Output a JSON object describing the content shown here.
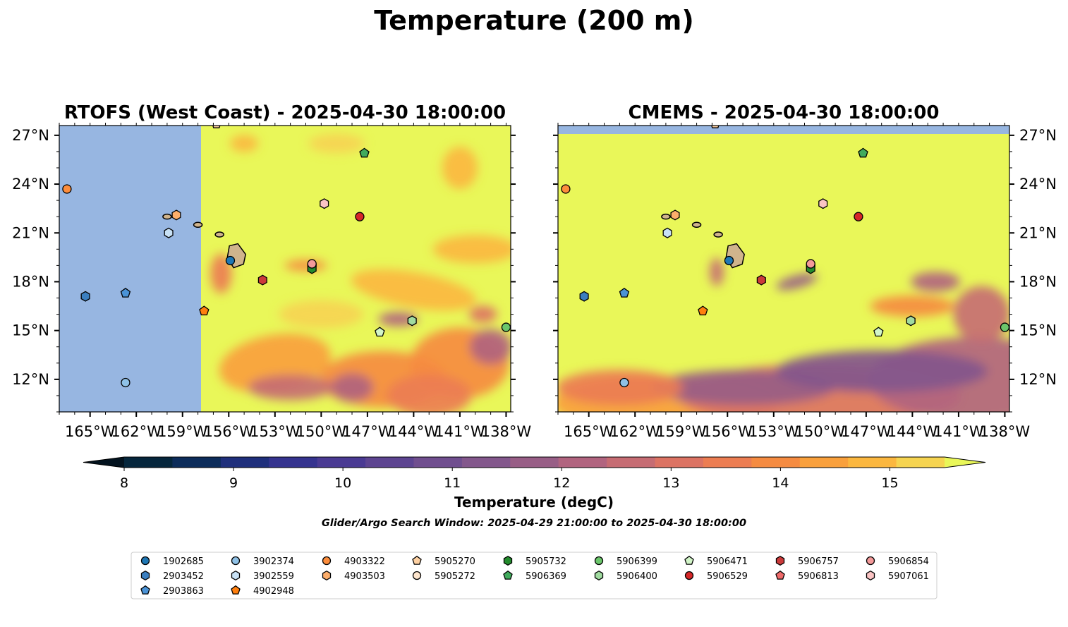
{
  "figure": {
    "title": "Temperature (200 m)",
    "search_window": "Glider/Argo Search Window: 2025-04-29 21:00:00 to 2025-04-30 18:00:00"
  },
  "chart_data": [
    {
      "type": "heatmap",
      "title": "RTOFS (West Coast) - 2025-04-30 18:00:00",
      "lon_range": [
        -167,
        -137.7
      ],
      "lat_range": [
        10,
        27.6
      ],
      "x_ticks": [
        -165,
        -162,
        -159,
        -156,
        -153,
        -150,
        -147,
        -144,
        -141,
        -138
      ],
      "x_tick_labels": [
        "165°W",
        "162°W",
        "159°W",
        "156°W",
        "153°W",
        "150°W",
        "147°W",
        "144°W",
        "141°W",
        "138°W"
      ],
      "y_ticks": [
        27,
        24,
        21,
        18,
        15,
        12
      ],
      "y_tick_labels": [
        "27°N",
        "24°N",
        "21°N",
        "18°N",
        "15°N",
        "12°N"
      ],
      "y_tick_side": "left",
      "no_data_west_of_lon": -157.8,
      "no_data_color": "#97b6e1"
    },
    {
      "type": "heatmap",
      "title": "CMEMS - 2025-04-30 18:00:00",
      "lon_range": [
        -167,
        -137.7
      ],
      "lat_range": [
        10,
        27.6
      ],
      "x_ticks": [
        -165,
        -162,
        -159,
        -156,
        -153,
        -150,
        -147,
        -144,
        -141,
        -138
      ],
      "x_tick_labels": [
        "165°W",
        "162°W",
        "159°W",
        "156°W",
        "153°W",
        "150°W",
        "147°W",
        "144°W",
        "141°W",
        "138°W"
      ],
      "y_ticks": [
        27,
        24,
        21,
        18,
        15,
        12
      ],
      "y_tick_labels": [
        "27°N",
        "24°N",
        "21°N",
        "18°N",
        "15°N",
        "12°N"
      ],
      "y_tick_side": "right",
      "no_data_north_of_lat": 27.1,
      "no_data_color": "#97b6e1"
    }
  ],
  "colorbar": {
    "label": "Temperature (degC)",
    "range": [
      8,
      15.5
    ],
    "ticks": [
      "8",
      "9",
      "10",
      "11",
      "12",
      "13",
      "14",
      "15"
    ],
    "under_color": "#03131f",
    "over_color": "#e9f759",
    "colors": [
      "#05263c",
      "#0c2c5a",
      "#1f2f7c",
      "#35338f",
      "#4a3a93",
      "#5d4491",
      "#704e8f",
      "#83578c",
      "#985e86",
      "#b1647f",
      "#c66c73",
      "#dc7363",
      "#ec7d52",
      "#f58b41",
      "#f9a03c",
      "#fbb73f",
      "#f6d451"
    ]
  },
  "islands": [
    {
      "name": "Niihau/Kauai",
      "lon": -160.0,
      "lat": 22.0
    },
    {
      "name": "Oahu",
      "lon": -158.0,
      "lat": 21.5
    },
    {
      "name": "Maui Nui",
      "lon": -156.6,
      "lat": 20.9
    },
    {
      "name": "Hawaii",
      "lon": -155.5,
      "lat": 19.6
    }
  ],
  "floats": [
    {
      "id": "1902685",
      "color": "#1f77b4",
      "marker": "circle",
      "lon": -155.9,
      "lat": 19.3
    },
    {
      "id": "2903452",
      "color": "#3b7fc0",
      "marker": "hexagon",
      "lon": -165.3,
      "lat": 17.1
    },
    {
      "id": "2903863",
      "color": "#4b93d6",
      "marker": "pentagon",
      "lon": -162.7,
      "lat": 17.3
    },
    {
      "id": "3902374",
      "color": "#8fc1e6",
      "marker": "circle",
      "lon": -162.7,
      "lat": 11.8
    },
    {
      "id": "3902559",
      "color": "#c8e1f5",
      "marker": "hexagon",
      "lon": -159.9,
      "lat": 21.0
    },
    {
      "id": "4902948",
      "color": "#ff7f0e",
      "marker": "pentagon",
      "lon": -157.6,
      "lat": 16.2
    },
    {
      "id": "4903322",
      "color": "#fd8d3c",
      "marker": "circle",
      "lon": -166.5,
      "lat": 23.7
    },
    {
      "id": "4903503",
      "color": "#fdae6b",
      "marker": "hexagon",
      "lon": -159.4,
      "lat": 22.1
    },
    {
      "id": "5905270",
      "color": "#fdd0a2",
      "marker": "pentagon",
      "lon": -156.8,
      "lat": 27.7
    },
    {
      "id": "5905272",
      "color": "#fee6ce",
      "marker": "circle",
      "lon": -150.6,
      "lat": 19.0
    },
    {
      "id": "5905732",
      "color": "#238b2d",
      "marker": "hexagon",
      "lon": -150.6,
      "lat": 18.8
    },
    {
      "id": "5906369",
      "color": "#41ab5d",
      "marker": "pentagon",
      "lon": -147.2,
      "lat": 25.9
    },
    {
      "id": "5906399",
      "color": "#6bc66b",
      "marker": "circle",
      "lon": -138.0,
      "lat": 15.2
    },
    {
      "id": "5906400",
      "color": "#a1dba0",
      "marker": "hexagon",
      "lon": -144.1,
      "lat": 15.6
    },
    {
      "id": "5906471",
      "color": "#d2f5c8",
      "marker": "pentagon",
      "lon": -146.2,
      "lat": 14.9
    },
    {
      "id": "5906529",
      "color": "#d62728",
      "marker": "circle",
      "lon": -147.5,
      "lat": 22.0
    },
    {
      "id": "5906757",
      "color": "#cb3a3a",
      "marker": "hexagon",
      "lon": -153.8,
      "lat": 18.1
    },
    {
      "id": "5906813",
      "color": "#ef6a6a",
      "marker": "pentagon",
      "lon": -156.8,
      "lat": 27.9
    },
    {
      "id": "5906854",
      "color": "#f49a9a",
      "marker": "circle",
      "lon": -150.6,
      "lat": 19.1
    },
    {
      "id": "5907061",
      "color": "#fbc4c4",
      "marker": "hexagon",
      "lon": -149.8,
      "lat": 22.8
    }
  ]
}
